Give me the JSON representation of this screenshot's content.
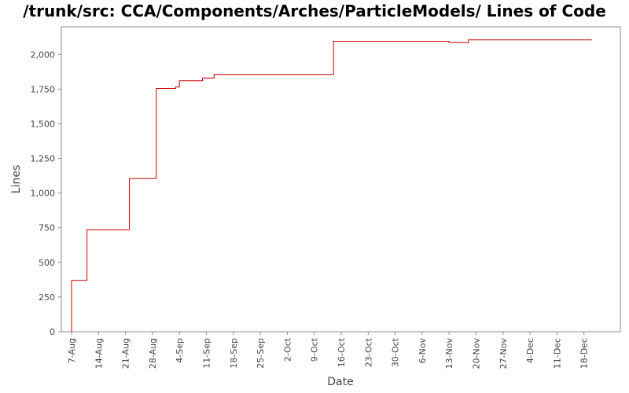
{
  "chart_data": {
    "type": "line",
    "title": "/trunk/src: CCA/Components/Arches/ParticleModels/ Lines of Code",
    "xlabel": "Date",
    "ylabel": "Lines",
    "x_tick_labels": [
      "7-Aug",
      "14-Aug",
      "21-Aug",
      "28-Aug",
      "4-Sep",
      "11-Sep",
      "18-Sep",
      "25-Sep",
      "2-Oct",
      "9-Oct",
      "16-Oct",
      "23-Oct",
      "30-Oct",
      "6-Nov",
      "13-Nov",
      "20-Nov",
      "27-Nov",
      "4-Dec",
      "11-Dec",
      "18-Dec"
    ],
    "y_ticks": [
      0,
      250,
      500,
      750,
      1000,
      1250,
      1500,
      1750,
      2000
    ],
    "y_tick_labels": [
      "0",
      "250",
      "500",
      "750",
      "1,000",
      "1,250",
      "1,500",
      "1,750",
      "2,000"
    ],
    "ylim": [
      0,
      2200
    ],
    "line_color": "#cc0000",
    "series": [
      {
        "points": [
          [
            "7-Aug",
            0
          ],
          [
            "7-Aug",
            370
          ],
          [
            "11-Aug",
            370
          ],
          [
            "11-Aug",
            735
          ],
          [
            "22-Aug",
            735
          ],
          [
            "22-Aug",
            1105
          ],
          [
            "29-Aug",
            1105
          ],
          [
            "29-Aug",
            1755
          ],
          [
            "3-Sep",
            1755
          ],
          [
            "3-Sep",
            1765
          ],
          [
            "4-Sep",
            1765
          ],
          [
            "4-Sep",
            1810
          ],
          [
            "10-Sep",
            1810
          ],
          [
            "10-Sep",
            1830
          ],
          [
            "13-Sep",
            1830
          ],
          [
            "13-Sep",
            1855
          ],
          [
            "14-Oct",
            1855
          ],
          [
            "14-Oct",
            2095
          ],
          [
            "13-Nov",
            2095
          ],
          [
            "13-Nov",
            2085
          ],
          [
            "18-Nov",
            2085
          ],
          [
            "18-Nov",
            2105
          ],
          [
            "20-Dec",
            2105
          ]
        ]
      }
    ]
  }
}
